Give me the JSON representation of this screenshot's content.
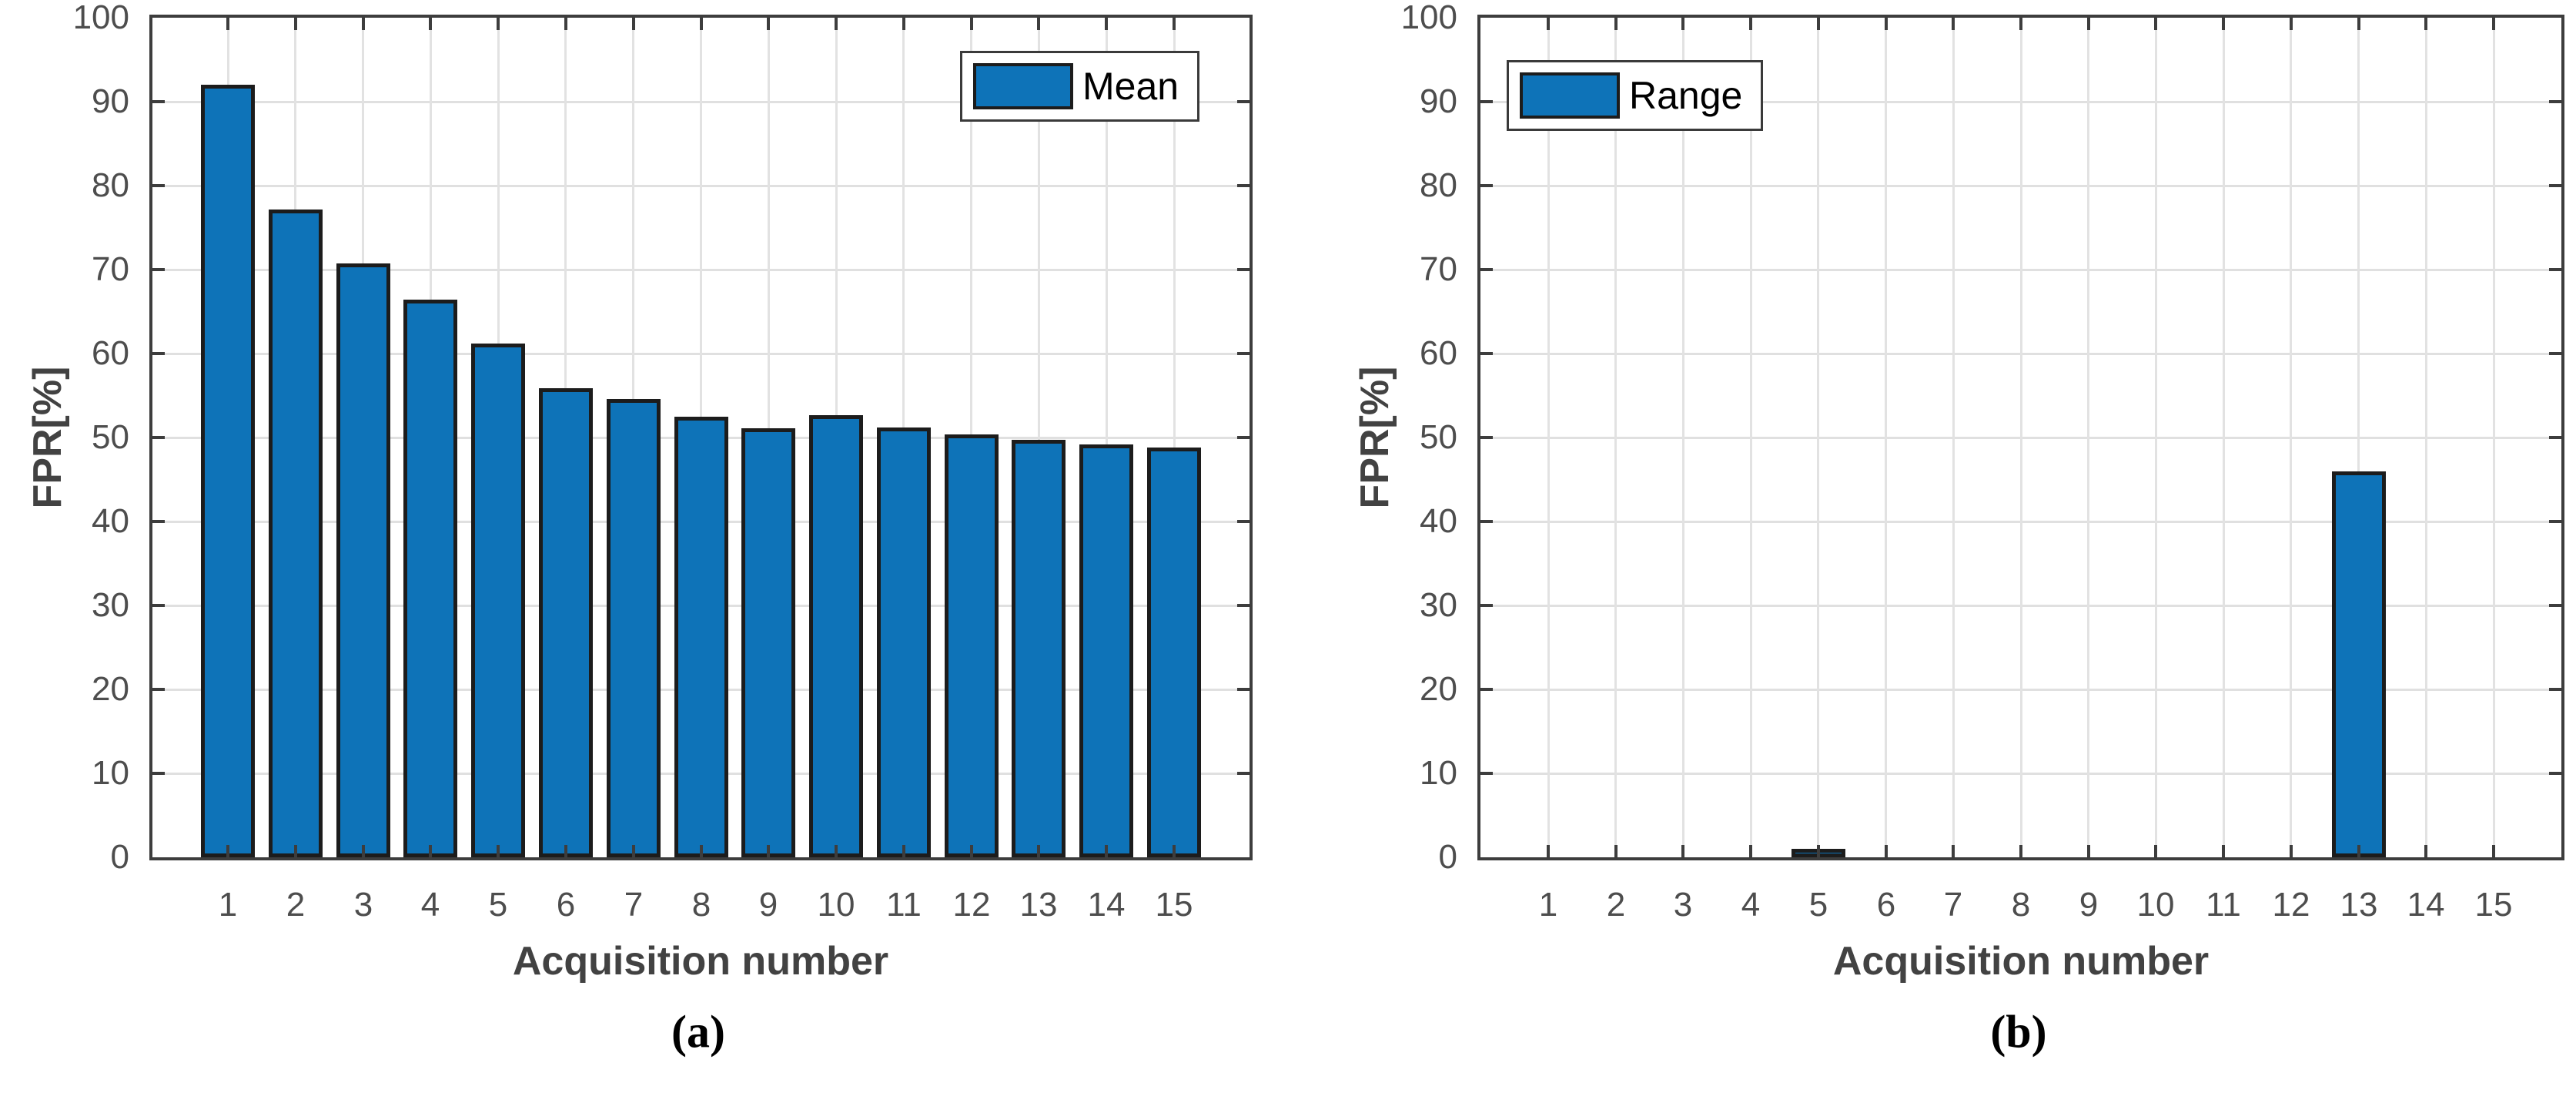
{
  "figure": {
    "background": "#ffffff",
    "axis_color": "#3d3d3d",
    "grid_color": "#e0e0e0",
    "tick_label_color": "#4d4d4d",
    "axis_label_color": "#424242"
  },
  "chart_data": [
    {
      "type": "bar",
      "title": "",
      "xlabel": "Acquisition number",
      "ylabel": "FPR[%]",
      "caption": "(a)",
      "legend": {
        "label": "Mean",
        "position": "top-right"
      },
      "categories": [
        "1",
        "2",
        "3",
        "4",
        "5",
        "6",
        "7",
        "8",
        "9",
        "10",
        "11",
        "12",
        "13",
        "14",
        "15"
      ],
      "values": [
        92.0,
        77.2,
        70.7,
        66.4,
        61.2,
        55.9,
        54.6,
        52.5,
        51.1,
        52.7,
        51.2,
        50.4,
        49.7,
        49.2,
        48.8
      ],
      "ylim": [
        0,
        100
      ],
      "yticks": [
        0,
        10,
        20,
        30,
        40,
        50,
        60,
        70,
        80,
        90,
        100
      ],
      "ytick_labels": [
        "0",
        "10",
        "20",
        "30",
        "40",
        "50",
        "60",
        "70",
        "80",
        "90",
        "100"
      ],
      "grid": true,
      "bar_color": "#0e73b8",
      "bar_edge_color": "#1c1c1c"
    },
    {
      "type": "bar",
      "title": "",
      "xlabel": "Acquisition number",
      "ylabel": "FPR[%]",
      "caption": "(b)",
      "legend": {
        "label": "Range",
        "position": "top-left"
      },
      "categories": [
        "1",
        "2",
        "3",
        "4",
        "5",
        "6",
        "7",
        "8",
        "9",
        "10",
        "11",
        "12",
        "13",
        "14",
        "15"
      ],
      "values": [
        0,
        0,
        0,
        0,
        1.0,
        0,
        0,
        0,
        0,
        0,
        0,
        0,
        46.0,
        0,
        0
      ],
      "ylim": [
        0,
        100
      ],
      "yticks": [
        0,
        10,
        20,
        30,
        40,
        50,
        60,
        70,
        80,
        90,
        100
      ],
      "ytick_labels": [
        "0",
        "10",
        "20",
        "30",
        "40",
        "50",
        "60",
        "70",
        "80",
        "90",
        "100"
      ],
      "grid": true,
      "bar_color": "#0e73b8",
      "bar_edge_color": "#1c1c1c"
    }
  ]
}
